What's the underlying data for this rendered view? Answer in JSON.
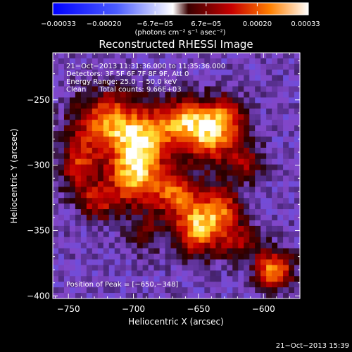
{
  "chart_data": {
    "type": "heatmap",
    "title": "Reconstructed RHESSI Image",
    "xlabel": "Heliocentric X (arcsec)",
    "ylabel": "Heliocentric Y (arcsec)",
    "xlim": [
      -762,
      -572
    ],
    "ylim": [
      -402,
      -214
    ],
    "x_ticks": [
      -750,
      -700,
      -650,
      -600
    ],
    "y_ticks": [
      -400,
      -350,
      -300,
      -250
    ],
    "x_tick_labels": [
      "−750",
      "−700",
      "−650",
      "−600"
    ],
    "y_tick_labels": [
      "−400",
      "−350",
      "−300",
      "−250"
    ],
    "colorbar": {
      "range": [
        -0.00033,
        0.00033
      ],
      "tick_labels": [
        "−0.00033",
        "−0.00020",
        "−6.7e−05",
        "6.7e−05",
        "0.00020",
        "0.00033"
      ],
      "units": "(photons cm⁻² s⁻¹ asec⁻²)"
    },
    "info_lines": [
      "21−Oct−2013 11:31:36.000 to 11:35:36.000",
      "Detectors: 3F 5F 6F 7F 8F 9F, Att 0",
      "Energy Range: 25.0 − 50.0 keV",
      "Clean      Total counts: 9.66E+03"
    ],
    "peak_label": "Position of Peak = [−650,−348]",
    "peak": [
      -650,
      -348
    ],
    "sources": [
      {
        "x": -718,
        "y": -268,
        "amp": 0.0003,
        "sx": 18,
        "sy": 16
      },
      {
        "x": -700,
        "y": -308,
        "amp": 0.00032,
        "sx": 14,
        "sy": 16
      },
      {
        "x": -690,
        "y": -282,
        "amp": 0.00024,
        "sx": 14,
        "sy": 14
      },
      {
        "x": -660,
        "y": -266,
        "amp": 0.00028,
        "sx": 16,
        "sy": 12
      },
      {
        "x": -640,
        "y": -280,
        "amp": 0.00026,
        "sx": 14,
        "sy": 14
      },
      {
        "x": -628,
        "y": -262,
        "amp": 0.00018,
        "sx": 10,
        "sy": 10
      },
      {
        "x": -650,
        "y": -348,
        "amp": 0.00033,
        "sx": 12,
        "sy": 14
      },
      {
        "x": -668,
        "y": -322,
        "amp": 0.00024,
        "sx": 12,
        "sy": 12
      },
      {
        "x": -632,
        "y": -332,
        "amp": 0.00022,
        "sx": 10,
        "sy": 12
      },
      {
        "x": -618,
        "y": -358,
        "amp": 0.00016,
        "sx": 10,
        "sy": 10
      },
      {
        "x": -592,
        "y": -380,
        "amp": 0.0003,
        "sx": 10,
        "sy": 10
      },
      {
        "x": -742,
        "y": -300,
        "amp": 0.0002,
        "sx": 10,
        "sy": 14
      },
      {
        "x": -728,
        "y": -328,
        "amp": 0.00018,
        "sx": 10,
        "sy": 10
      },
      {
        "x": -690,
        "y": -352,
        "amp": 0.0001,
        "sx": 10,
        "sy": 10
      },
      {
        "x": -612,
        "y": -298,
        "amp": 0.00014,
        "sx": 10,
        "sy": 10
      }
    ],
    "noise": 4.5e-05,
    "background": -6e-05
  },
  "timestamp": "21−Oct−2013 15:39",
  "colors": {
    "background": "#000000",
    "text": "#ffffff",
    "peak_box": "#ffffff"
  }
}
